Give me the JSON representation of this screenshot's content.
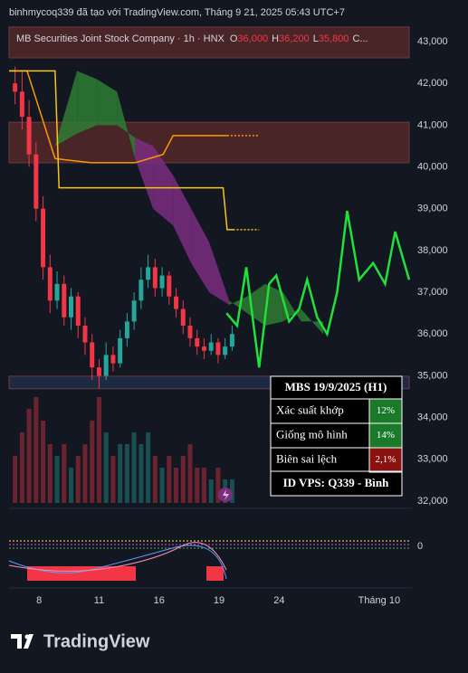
{
  "header": {
    "credit": "binhmycoq339 đã tạo với TradingView.com, Tháng 9 21, 2025 05:43 UTC+7",
    "brand": "TradingView"
  },
  "chart_data": {
    "type": "candlestick",
    "legend": {
      "symbol": "MB Securities Joint Stock Company · 1h · HNX",
      "o_label": "O",
      "o": "36,000",
      "h_label": "H",
      "h": "36,200",
      "l_label": "L",
      "l": "35,800",
      "c_label": "C..."
    },
    "ylim": [
      32000,
      43000
    ],
    "yticks": [
      {
        "value": 43000,
        "label": "43,000"
      },
      {
        "value": 42000,
        "label": "42,000"
      },
      {
        "value": 41000,
        "label": "41,000"
      },
      {
        "value": 40000,
        "label": "40,000"
      },
      {
        "value": 39000,
        "label": "39,000"
      },
      {
        "value": 38000,
        "label": "38,000"
      },
      {
        "value": 37000,
        "label": "37,000"
      },
      {
        "value": 36000,
        "label": "36,000"
      },
      {
        "value": 35000,
        "label": "35,000"
      },
      {
        "value": 34000,
        "label": "34,000"
      },
      {
        "value": 33000,
        "label": "33,000"
      },
      {
        "value": 32000,
        "label": "32,000"
      }
    ],
    "xlim": [
      -1.5,
      18.5
    ],
    "xticks": [
      {
        "value": 0,
        "label": "8"
      },
      {
        "value": 3,
        "label": "11"
      },
      {
        "value": 6,
        "label": "16"
      },
      {
        "value": 9,
        "label": "19"
      },
      {
        "value": 12,
        "label": "24"
      },
      {
        "value": 17,
        "label": "Tháng 10"
      }
    ],
    "up_color": "#26a69a",
    "down_color": "#f23645",
    "volume_lim": [
      0,
      10
    ],
    "candles": [
      {
        "x": -1.2,
        "open": 42000,
        "high": 42400,
        "low": 41500,
        "close": 41800,
        "volume": 4
      },
      {
        "x": -0.85,
        "open": 41800,
        "high": 42300,
        "low": 40900,
        "close": 41200,
        "volume": 6
      },
      {
        "x": -0.5,
        "open": 41200,
        "high": 41600,
        "low": 40000,
        "close": 40300,
        "volume": 8
      },
      {
        "x": -0.15,
        "open": 40300,
        "high": 40600,
        "low": 38700,
        "close": 39000,
        "volume": 9
      },
      {
        "x": 0.2,
        "open": 39000,
        "high": 39300,
        "low": 37300,
        "close": 37600,
        "volume": 7
      },
      {
        "x": 0.55,
        "open": 37600,
        "high": 37900,
        "low": 36500,
        "close": 36800,
        "volume": 5
      },
      {
        "x": 0.9,
        "open": 36800,
        "high": 37500,
        "low": 36600,
        "close": 37200,
        "volume": 4
      },
      {
        "x": 1.25,
        "open": 37200,
        "high": 37400,
        "low": 36200,
        "close": 36400,
        "volume": 5
      },
      {
        "x": 1.6,
        "open": 36400,
        "high": 37100,
        "low": 36100,
        "close": 36900,
        "volume": 3
      },
      {
        "x": 1.95,
        "open": 36900,
        "high": 37000,
        "low": 35900,
        "close": 36200,
        "volume": 4
      },
      {
        "x": 2.3,
        "open": 36200,
        "high": 36400,
        "low": 35500,
        "close": 35800,
        "volume": 5
      },
      {
        "x": 2.65,
        "open": 35800,
        "high": 36000,
        "low": 34900,
        "close": 35200,
        "volume": 7
      },
      {
        "x": 3.0,
        "open": 35200,
        "high": 35400,
        "low": 34700,
        "close": 35000,
        "volume": 9
      },
      {
        "x": 3.35,
        "open": 35000,
        "high": 35800,
        "low": 34900,
        "close": 35500,
        "volume": 6
      },
      {
        "x": 3.7,
        "open": 35500,
        "high": 35700,
        "low": 35100,
        "close": 35300,
        "volume": 4
      },
      {
        "x": 4.05,
        "open": 35300,
        "high": 36100,
        "low": 35200,
        "close": 35900,
        "volume": 5
      },
      {
        "x": 4.4,
        "open": 35900,
        "high": 36500,
        "low": 35700,
        "close": 36300,
        "volume": 5
      },
      {
        "x": 4.75,
        "open": 36300,
        "high": 37000,
        "low": 36100,
        "close": 36800,
        "volume": 6
      },
      {
        "x": 5.1,
        "open": 36800,
        "high": 37600,
        "low": 36600,
        "close": 37300,
        "volume": 5
      },
      {
        "x": 5.45,
        "open": 37300,
        "high": 37900,
        "low": 37100,
        "close": 37600,
        "volume": 6
      },
      {
        "x": 5.8,
        "open": 37600,
        "high": 37800,
        "low": 36900,
        "close": 37100,
        "volume": 4
      },
      {
        "x": 6.15,
        "open": 37100,
        "high": 37600,
        "low": 36900,
        "close": 37400,
        "volume": 3
      },
      {
        "x": 6.5,
        "open": 37400,
        "high": 37500,
        "low": 36700,
        "close": 36900,
        "volume": 4
      },
      {
        "x": 6.85,
        "open": 36900,
        "high": 37100,
        "low": 36400,
        "close": 36600,
        "volume": 3
      },
      {
        "x": 7.2,
        "open": 36600,
        "high": 36800,
        "low": 36000,
        "close": 36200,
        "volume": 4
      },
      {
        "x": 7.55,
        "open": 36200,
        "high": 36400,
        "low": 35700,
        "close": 35900,
        "volume": 5
      },
      {
        "x": 7.9,
        "open": 35900,
        "high": 36100,
        "low": 35500,
        "close": 35700,
        "volume": 3
      },
      {
        "x": 8.25,
        "open": 35700,
        "high": 35900,
        "low": 35400,
        "close": 35600,
        "volume": 3
      },
      {
        "x": 8.6,
        "open": 35600,
        "high": 36000,
        "low": 35500,
        "close": 35800,
        "volume": 2
      },
      {
        "x": 8.95,
        "open": 35800,
        "high": 35900,
        "low": 35300,
        "close": 35500,
        "volume": 3
      },
      {
        "x": 9.3,
        "open": 35500,
        "high": 35900,
        "low": 35400,
        "close": 35700,
        "volume": 2
      },
      {
        "x": 9.65,
        "open": 35700,
        "high": 36200,
        "low": 35600,
        "close": 36000,
        "volume": 2
      }
    ],
    "zones": [
      {
        "from": 42610,
        "to": 43350,
        "color": "#4a2528"
      },
      {
        "from": 40100,
        "to": 41070,
        "color": "#4a2528"
      },
      {
        "from": 34690,
        "to": 34990,
        "color": "#1c2a44"
      }
    ],
    "cloud": {
      "up_color": "#2e7d32",
      "down_color": "#7b2d80",
      "x": [
        0.8,
        1.9,
        2.9,
        3.9,
        4.8,
        5.7,
        6.7,
        7.6,
        8.5,
        9.5,
        10.4,
        11.3,
        12.2,
        13.1,
        14.2
      ],
      "span_a": [
        40500,
        42300,
        42100,
        41800,
        40200,
        39000,
        38600,
        37700,
        37000,
        36700,
        36900,
        37200,
        37000,
        36300,
        36300
      ],
      "span_b": [
        40500,
        40800,
        41000,
        41000,
        40700,
        40500,
        39800,
        39000,
        38200,
        36800,
        36500,
        36200,
        36300,
        36600,
        36000
      ]
    },
    "lines": [
      {
        "color": "#ff9800",
        "dashed": false,
        "x": [
          -1.5,
          -0.6,
          0.8,
          2.6,
          4.8,
          6.2,
          6.7,
          9.4
        ],
        "values": [
          42300,
          42300,
          40200,
          40100,
          40100,
          40300,
          40750,
          40750
        ]
      },
      {
        "color": "#ff9800",
        "dashed": true,
        "x": [
          9.4,
          11
        ],
        "values": [
          40750,
          40750
        ]
      },
      {
        "color": "#f5c518",
        "dashed": false,
        "x": [
          -1.5,
          0.8,
          1,
          9.2,
          9.4,
          9.7
        ],
        "values": [
          42300,
          42300,
          39500,
          39500,
          38500,
          38500
        ]
      },
      {
        "color": "#f5c518",
        "dashed": true,
        "x": [
          9.7,
          11
        ],
        "values": [
          38500,
          38500
        ]
      },
      {
        "color": "#22e03a",
        "dashed": false,
        "x": [
          9.37,
          9.9,
          10.36,
          10.7,
          11.0,
          11.5,
          11.86,
          12.5,
          13.0,
          13.4,
          13.9,
          14.4,
          14.9,
          15.4,
          16.0,
          16.7,
          17.3,
          17.8,
          18.5
        ],
        "values": [
          36500,
          36200,
          37600,
          36300,
          35200,
          37200,
          37400,
          36300,
          36600,
          37300,
          36400,
          36000,
          37000,
          38950,
          37300,
          37700,
          37200,
          38450,
          37300
        ]
      }
    ],
    "oscillator": {
      "yticks": [
        0
      ]
    }
  },
  "info": {
    "title": "MBS 19/9/2025 (H1)",
    "rows": [
      {
        "label": "Xác suất khớp",
        "value": "12%",
        "tone": "good"
      },
      {
        "label": "Giống mô hình",
        "value": "14%",
        "tone": "good"
      },
      {
        "label": "Biên sai lệch",
        "value": "2,1%",
        "tone": "bad"
      }
    ],
    "footer": "ID VPS: Q339 - Bình"
  }
}
